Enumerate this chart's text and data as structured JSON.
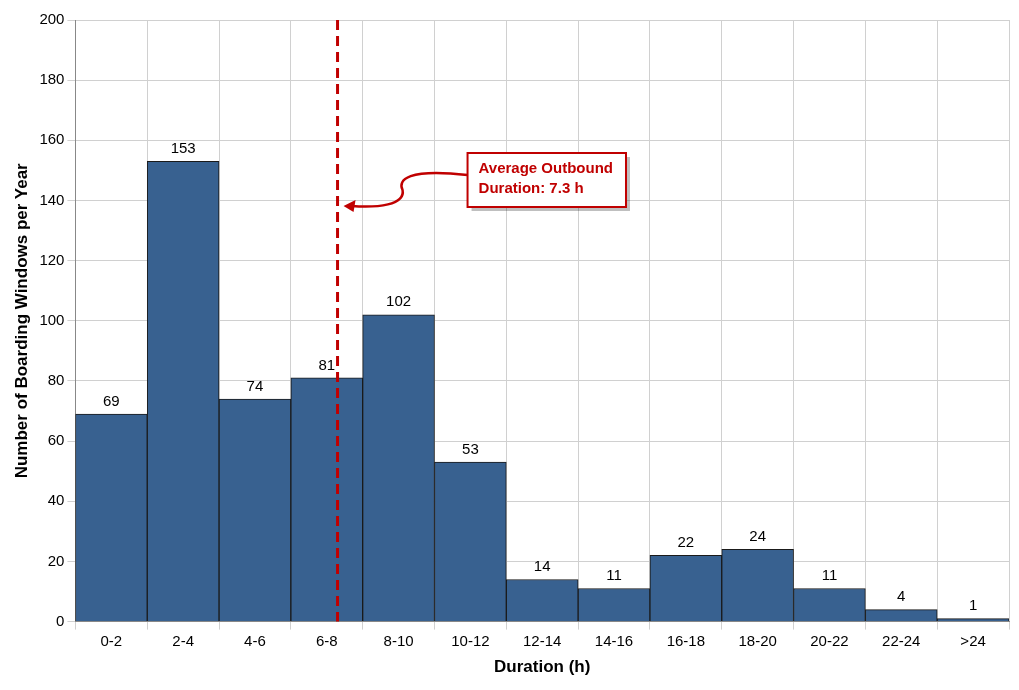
{
  "chart_data": {
    "type": "bar",
    "xlabel": "Duration (h)",
    "ylabel": "Number of Boarding Windows per Year",
    "categories": [
      "0-2",
      "2-4",
      "4-6",
      "6-8",
      "8-10",
      "10-12",
      "12-14",
      "14-16",
      "16-18",
      "18-20",
      "20-22",
      "22-24",
      ">24"
    ],
    "values": [
      69,
      153,
      74,
      81,
      102,
      53,
      14,
      11,
      22,
      24,
      11,
      4,
      1
    ],
    "color": "#386190",
    "ylim": [
      0,
      200
    ],
    "yticks": [
      0,
      20,
      40,
      60,
      80,
      100,
      120,
      140,
      160,
      180,
      200
    ],
    "grid": true,
    "data_labels": true,
    "ref_lines": [
      {
        "axis": "x",
        "value": "6-8",
        "label": "Average Outbound Duration: 7.3 h",
        "color": "#c00000",
        "line_style": "dashed"
      }
    ]
  }
}
